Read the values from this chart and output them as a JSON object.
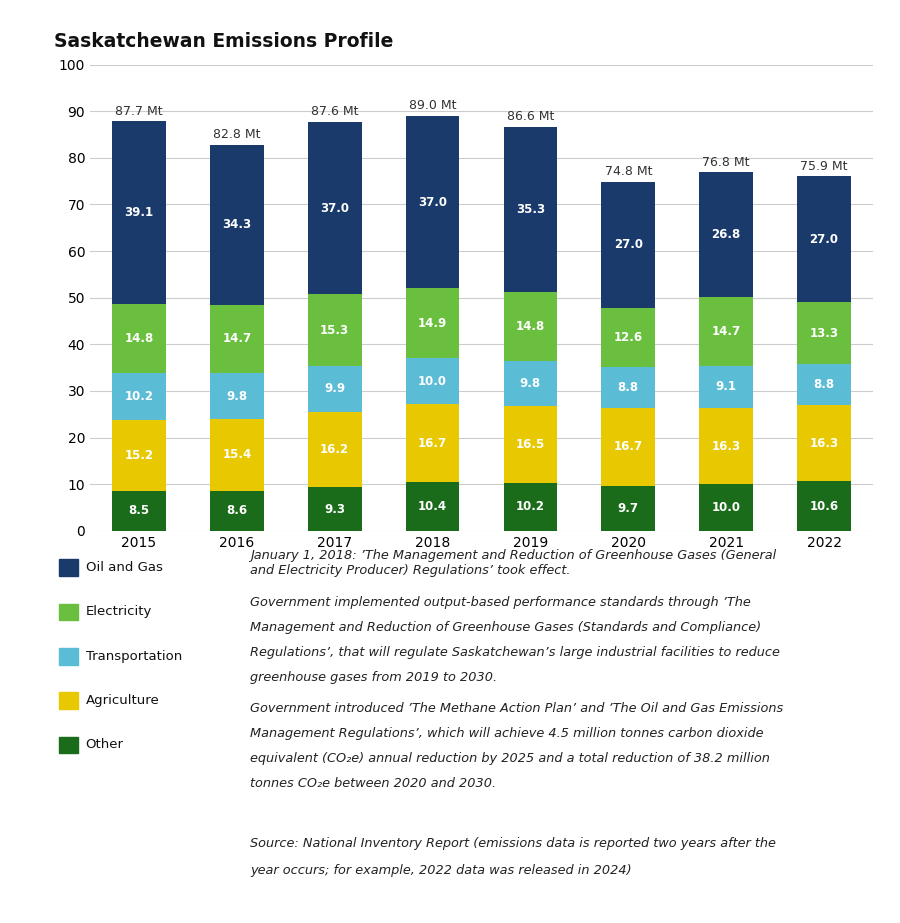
{
  "title": "Saskatchewan Emissions Profile",
  "years": [
    2015,
    2016,
    2017,
    2018,
    2019,
    2020,
    2021,
    2022
  ],
  "totals": [
    "87.7 Mt",
    "82.8 Mt",
    "87.6 Mt",
    "89.0 Mt",
    "86.6 Mt",
    "74.8 Mt",
    "76.8 Mt",
    "75.9 Mt"
  ],
  "categories": [
    "Other",
    "Agriculture",
    "Transportation",
    "Electricity",
    "Oil and Gas"
  ],
  "colors": [
    "#1a6b1a",
    "#e8c800",
    "#5bbcd6",
    "#6abf3e",
    "#1a3a6b"
  ],
  "data": {
    "Other": [
      8.5,
      8.6,
      9.3,
      10.4,
      10.2,
      9.7,
      10.0,
      10.6
    ],
    "Agriculture": [
      15.2,
      15.4,
      16.2,
      16.7,
      16.5,
      16.7,
      16.3,
      16.3
    ],
    "Transportation": [
      10.2,
      9.8,
      9.9,
      10.0,
      9.8,
      8.8,
      9.1,
      8.8
    ],
    "Electricity": [
      14.8,
      14.7,
      15.3,
      14.9,
      14.8,
      12.6,
      14.7,
      13.3
    ],
    "Oil and Gas": [
      39.1,
      34.3,
      37.0,
      37.0,
      35.3,
      27.0,
      26.8,
      27.0
    ]
  },
  "legend_labels": [
    "Oil and Gas",
    "Electricity",
    "Transportation",
    "Agriculture",
    "Other"
  ],
  "legend_colors": [
    "#1a3a6b",
    "#6abf3e",
    "#5bbcd6",
    "#e8c800",
    "#1a6b1a"
  ],
  "ylim": [
    0,
    100
  ],
  "yticks": [
    0,
    10,
    20,
    30,
    40,
    50,
    60,
    70,
    80,
    90,
    100
  ],
  "bar_width": 0.55,
  "background_color": "#ffffff",
  "text_color": "#222222",
  "para1_prefix": "January 1, 2018: ",
  "para1_italic": "The Management and Reduction of Greenhouse Gases (General and Electricity Producer) Regulations",
  "para1_suffix": " took effect.",
  "para2": "Government implemented output-based performance standards through The Management and Reduction of Greenhouse Gases (Standards and Compliance) Regulations, that will regulate Saskatchewan’s large industrial facilities to reduce greenhouse gases from 2019 to 2030.",
  "para3": "Government introduced The Methane Action Plan and The Oil and Gas Emissions Management Regulations, which will achieve 4.5 million tonnes carbon dioxide equivalent (CO₂e) annual reduction by 2025 and a total reduction of 38.2 million tonnes CO₂e between 2020 and 2030.",
  "source": "Source: National Inventory Report (emissions data is reported two years after the year occurs; for example, 2022 data was released in 2024)"
}
